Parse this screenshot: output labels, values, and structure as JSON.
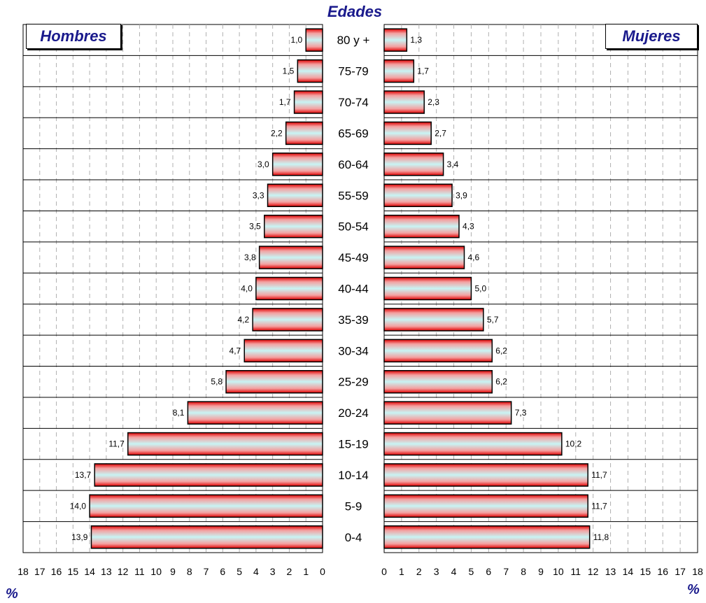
{
  "chart_data": {
    "type": "bar",
    "title": "Edades",
    "categories": [
      "80 y +",
      "75-79",
      "70-74",
      "65-69",
      "60-64",
      "55-59",
      "50-54",
      "45-49",
      "40-44",
      "35-39",
      "30-34",
      "25-29",
      "20-24",
      "15-19",
      "10-14",
      "5-9",
      "0-4"
    ],
    "series": [
      {
        "name": "Hombres",
        "values": [
          1.0,
          1.5,
          1.7,
          2.2,
          3.0,
          3.3,
          3.5,
          3.8,
          4.0,
          4.2,
          4.7,
          5.8,
          8.1,
          11.7,
          13.7,
          14.0,
          13.9
        ],
        "labels": [
          "1,0",
          "1,5",
          "1,7",
          "2,2",
          "3,0",
          "3,3",
          "3,5",
          "3,8",
          "4,0",
          "4,2",
          "4,7",
          "5,8",
          "8,1",
          "11,7",
          "13,7",
          "14,0",
          "13,9"
        ]
      },
      {
        "name": "Mujeres",
        "values": [
          1.3,
          1.7,
          2.3,
          2.7,
          3.4,
          3.9,
          4.3,
          4.6,
          5.0,
          5.7,
          6.2,
          6.2,
          7.3,
          10.2,
          11.7,
          11.7,
          11.8
        ],
        "labels": [
          "1,3",
          "1,7",
          "2,3",
          "2,7",
          "3,4",
          "3,9",
          "4,3",
          "4,6",
          "5,0",
          "5,7",
          "6,2",
          "6,2",
          "7,3",
          "10,2",
          "11,7",
          "11,7",
          "11,8"
        ]
      }
    ],
    "xlim": [
      0,
      18
    ],
    "xticks": [
      "0",
      "1",
      "2",
      "3",
      "4",
      "5",
      "6",
      "7",
      "8",
      "9",
      "10",
      "11",
      "12",
      "13",
      "14",
      "15",
      "16",
      "17",
      "18"
    ],
    "xlabel_left": "%",
    "xlabel_right": "%",
    "grid": true,
    "legend": [
      "Hombres",
      "Mujeres"
    ]
  }
}
